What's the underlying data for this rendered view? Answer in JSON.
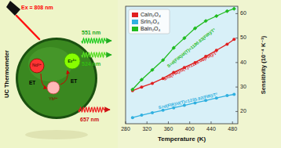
{
  "chart_data": {
    "type": "line",
    "x_label": "Temperature (K)",
    "y_label": "Sensitivity (10⁻⁴ K⁻¹)",
    "xlim": [
      280,
      490
    ],
    "ylim": [
      15,
      63
    ],
    "xticks": [
      280,
      320,
      360,
      400,
      440,
      480
    ],
    "yticks": [
      20,
      30,
      40,
      50,
      60
    ],
    "legend": "upper left",
    "series": [
      {
        "name": "CaIn₂O₄",
        "color": "#e02020",
        "marker": "circle",
        "x": [
          293,
          310,
          330,
          350,
          370,
          390,
          410,
          430,
          450,
          470,
          483
        ],
        "values": [
          28.5,
          30,
          31.5,
          33.5,
          36,
          38,
          40,
          42.5,
          45,
          47.5,
          49.5
        ],
        "equation": "S=d(FIR)/d(T)=1126.08(FIR)/T²"
      },
      {
        "name": "SrIn₂O₄",
        "color": "#30b0e0",
        "marker": "circle",
        "x": [
          293,
          310,
          330,
          350,
          370,
          390,
          410,
          430,
          450,
          470,
          483
        ],
        "values": [
          17.5,
          18.5,
          19.5,
          20.5,
          21.5,
          22.5,
          23.5,
          24.5,
          25.5,
          26.5,
          27
        ],
        "equation": "S=d(FIR)/d(T)=1235.92(FIR)/T²"
      },
      {
        "name": "BaIn₂O₄",
        "color": "#20bb20",
        "marker": "diamond",
        "x": [
          293,
          310,
          330,
          350,
          370,
          390,
          410,
          430,
          450,
          470,
          483
        ],
        "values": [
          29,
          33,
          37,
          41,
          46,
          50,
          54,
          57,
          59,
          61,
          62
        ],
        "equation": "S=d(FIR)/d(T)=1190.83(FIR)/T²"
      }
    ],
    "annotations": [
      "UC Thermometer",
      "Ex = 808 nm",
      "Er³⁺",
      "Yb³⁺",
      "Nd³⁺",
      "ET",
      "ET",
      "551 nm",
      "524 nm",
      "657 nm"
    ]
  }
}
